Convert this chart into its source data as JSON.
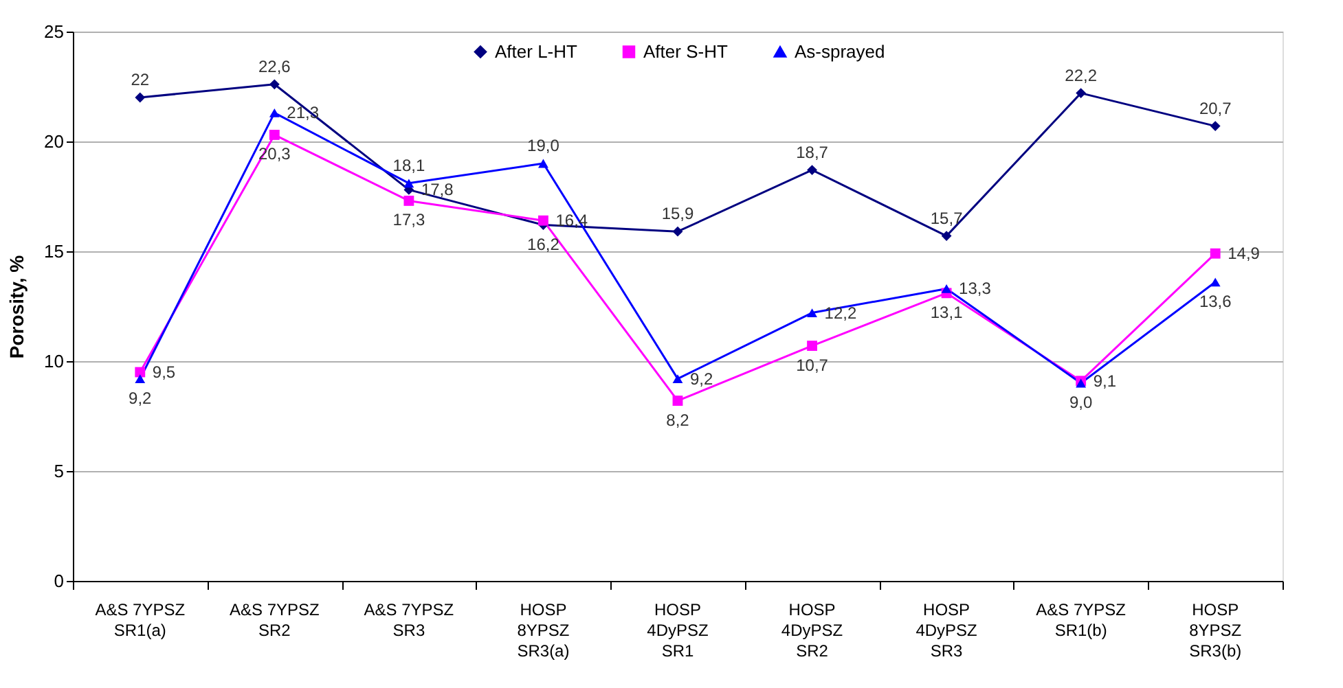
{
  "chart_data": {
    "type": "line",
    "ylabel": "Porosity, %",
    "categories": [
      "A&S 7YPSZ\nSR1(a)",
      "A&S 7YPSZ\nSR2",
      "A&S 7YPSZ\nSR3",
      "HOSP\n8YPSZ\nSR3(a)",
      "HOSP\n4DyPSZ\nSR1",
      "HOSP\n4DyPSZ\nSR2",
      "HOSP\n4DyPSZ\nSR3",
      "A&S 7YPSZ\nSR1(b)",
      "HOSP\n8YPSZ\nSR3(b)"
    ],
    "series": [
      {
        "name": "After L-HT",
        "color": "#000080",
        "marker": "diamond",
        "values": [
          22,
          22.6,
          17.8,
          16.2,
          15.9,
          18.7,
          15.7,
          22.2,
          20.7
        ],
        "value_labels": [
          "22",
          "22,6",
          "17,8",
          "16,2",
          "15,9",
          "18,7",
          "15,7",
          "22,2",
          "20,7"
        ]
      },
      {
        "name": "After S-HT",
        "color": "#ff00ff",
        "marker": "square",
        "values": [
          9.5,
          20.3,
          17.3,
          16.4,
          8.2,
          10.7,
          13.1,
          9.1,
          14.9
        ],
        "value_labels": [
          "9,5",
          "20,3",
          "17,3",
          "16,4",
          "8,2",
          "10,7",
          "13,1",
          "9,1",
          "14,9"
        ]
      },
      {
        "name": "As-sprayed",
        "color": "#0000ff",
        "marker": "triangle",
        "values": [
          9.2,
          21.3,
          18.1,
          19.0,
          9.2,
          12.2,
          13.3,
          9.0,
          13.6
        ],
        "value_labels": [
          "9,2",
          "21,3",
          "18,1",
          "19,0",
          "9,2",
          "12,2",
          "13,3",
          "9,0",
          "13,6"
        ]
      }
    ],
    "ylim": [
      0,
      25
    ],
    "yticks": [
      0,
      5,
      10,
      15,
      20,
      25
    ],
    "grid": "y",
    "legend": "top",
    "line_style": "solid"
  }
}
